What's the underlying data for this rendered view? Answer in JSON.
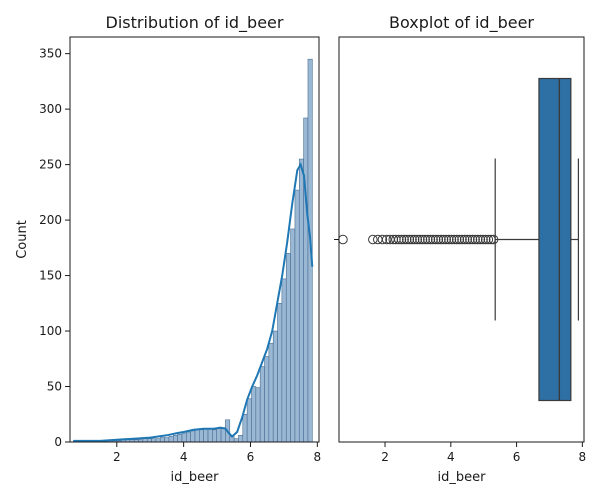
{
  "chart_data": [
    {
      "type": "bar",
      "title": "Distribution of id_beer",
      "xlabel": "id_beer",
      "ylabel": "Count",
      "xlim": [
        0.6,
        8.05
      ],
      "ylim": [
        0,
        365
      ],
      "xticks": [
        2,
        4,
        6,
        8
      ],
      "yticks": [
        0,
        50,
        100,
        150,
        200,
        250,
        300,
        350
      ],
      "bar_color": "#9ab7d4",
      "kde_color": "#1f77b4",
      "bin_width": 0.13,
      "bins": [
        [
          0.7,
          1
        ],
        [
          0.83,
          1
        ],
        [
          0.96,
          0
        ],
        [
          1.09,
          0
        ],
        [
          1.22,
          0
        ],
        [
          1.35,
          0
        ],
        [
          1.48,
          1
        ],
        [
          1.61,
          1
        ],
        [
          1.74,
          1
        ],
        [
          1.87,
          1
        ],
        [
          2.0,
          1
        ],
        [
          2.13,
          2
        ],
        [
          2.26,
          2
        ],
        [
          2.39,
          2
        ],
        [
          2.52,
          2
        ],
        [
          2.65,
          2
        ],
        [
          2.78,
          3
        ],
        [
          2.91,
          3
        ],
        [
          3.04,
          3
        ],
        [
          3.17,
          3
        ],
        [
          3.3,
          4
        ],
        [
          3.43,
          4
        ],
        [
          3.56,
          5
        ],
        [
          3.69,
          6
        ],
        [
          3.82,
          7
        ],
        [
          3.95,
          8
        ],
        [
          4.08,
          9
        ],
        [
          4.21,
          10
        ],
        [
          4.34,
          11
        ],
        [
          4.47,
          11
        ],
        [
          4.6,
          12
        ],
        [
          4.73,
          12
        ],
        [
          4.86,
          11
        ],
        [
          4.99,
          12
        ],
        [
          5.12,
          13
        ],
        [
          5.25,
          20
        ],
        [
          5.38,
          5
        ],
        [
          5.51,
          3
        ],
        [
          5.64,
          6
        ],
        [
          5.77,
          25
        ],
        [
          5.9,
          39
        ],
        [
          6.03,
          50
        ],
        [
          6.16,
          49
        ],
        [
          6.29,
          68
        ],
        [
          6.42,
          77
        ],
        [
          6.55,
          89
        ],
        [
          6.68,
          100
        ],
        [
          6.81,
          125
        ],
        [
          6.94,
          147
        ],
        [
          7.07,
          170
        ],
        [
          7.2,
          192
        ],
        [
          7.33,
          227
        ],
        [
          7.46,
          255
        ],
        [
          7.59,
          292
        ],
        [
          7.72,
          345
        ]
      ],
      "kde": [
        [
          0.7,
          1
        ],
        [
          1.0,
          1
        ],
        [
          1.5,
          1
        ],
        [
          2.0,
          2
        ],
        [
          2.5,
          3
        ],
        [
          3.0,
          4
        ],
        [
          3.5,
          6
        ],
        [
          3.8,
          8
        ],
        [
          4.0,
          9
        ],
        [
          4.3,
          11
        ],
        [
          4.6,
          12
        ],
        [
          4.9,
          12
        ],
        [
          5.1,
          13
        ],
        [
          5.25,
          12
        ],
        [
          5.35,
          8
        ],
        [
          5.45,
          5
        ],
        [
          5.6,
          9
        ],
        [
          5.75,
          22
        ],
        [
          5.9,
          38
        ],
        [
          6.05,
          50
        ],
        [
          6.2,
          60
        ],
        [
          6.35,
          72
        ],
        [
          6.5,
          84
        ],
        [
          6.65,
          100
        ],
        [
          6.8,
          125
        ],
        [
          6.95,
          150
        ],
        [
          7.1,
          180
        ],
        [
          7.25,
          215
        ],
        [
          7.4,
          245
        ],
        [
          7.5,
          250
        ],
        [
          7.6,
          240
        ],
        [
          7.7,
          205
        ],
        [
          7.78,
          185
        ],
        [
          7.85,
          158
        ]
      ]
    },
    {
      "type": "box",
      "title": "Boxplot of id_beer",
      "xlabel": "id_beer",
      "xlim": [
        0.6,
        8.05
      ],
      "xticks": [
        2,
        4,
        6,
        8
      ],
      "box_color": "#2e6fa4",
      "whisker_low": 5.35,
      "q1": 6.68,
      "median": 7.3,
      "q3": 7.65,
      "whisker_high": 7.88,
      "outliers": [
        0.72,
        1.63,
        1.78,
        1.92,
        2.05,
        2.15,
        2.25,
        2.33,
        2.42,
        2.5,
        2.58,
        2.66,
        2.74,
        2.82,
        2.9,
        2.98,
        3.06,
        3.14,
        3.22,
        3.3,
        3.38,
        3.46,
        3.54,
        3.62,
        3.7,
        3.78,
        3.86,
        3.94,
        4.02,
        4.1,
        4.18,
        4.26,
        4.34,
        4.42,
        4.5,
        4.58,
        4.66,
        4.74,
        4.82,
        4.9,
        4.98,
        5.06,
        5.14,
        5.22,
        5.3
      ]
    }
  ]
}
